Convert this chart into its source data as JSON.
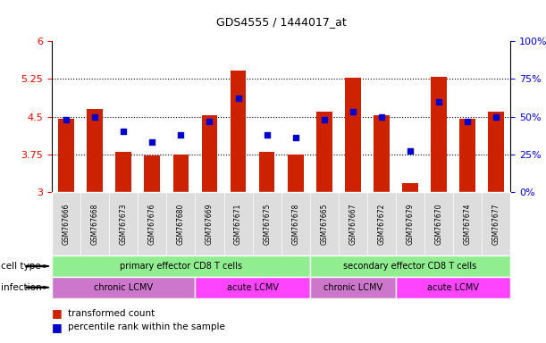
{
  "title": "GDS4555 / 1444017_at",
  "samples": [
    "GSM767666",
    "GSM767668",
    "GSM767673",
    "GSM767676",
    "GSM767680",
    "GSM767669",
    "GSM767671",
    "GSM767675",
    "GSM767678",
    "GSM767665",
    "GSM767667",
    "GSM767672",
    "GSM767679",
    "GSM767670",
    "GSM767674",
    "GSM767677"
  ],
  "red_values": [
    4.45,
    4.65,
    3.8,
    3.72,
    3.75,
    4.52,
    5.42,
    3.8,
    3.75,
    4.6,
    5.27,
    4.52,
    3.18,
    5.3,
    4.45,
    4.6
  ],
  "blue_values": [
    48,
    50,
    40,
    33,
    38,
    47,
    62,
    38,
    36,
    48,
    53,
    50,
    27,
    60,
    47,
    50
  ],
  "ylim_left": [
    3.0,
    6.0
  ],
  "ylim_right": [
    0,
    100
  ],
  "yticks_left": [
    3.0,
    3.75,
    4.5,
    5.25,
    6.0
  ],
  "ytick_labels_left": [
    "3",
    "3.75",
    "4.5",
    "5.25",
    "6"
  ],
  "yticks_right": [
    0,
    25,
    50,
    75,
    100
  ],
  "ytick_labels_right": [
    "0%",
    "25%",
    "50%",
    "75%",
    "100%"
  ],
  "hlines": [
    3.75,
    4.5,
    5.25
  ],
  "bar_color": "#cc2200",
  "dot_color": "#0000cc",
  "bar_width": 0.55,
  "cell_spans": [
    {
      "label": "primary effector CD8 T cells",
      "start": 0,
      "end": 8,
      "color": "#90EE90"
    },
    {
      "label": "secondary effector CD8 T cells",
      "start": 9,
      "end": 15,
      "color": "#90EE90"
    }
  ],
  "inf_spans": [
    {
      "label": "chronic LCMV",
      "start": 0,
      "end": 4,
      "color": "#CC77CC"
    },
    {
      "label": "acute LCMV",
      "start": 5,
      "end": 8,
      "color": "#FF44FF"
    },
    {
      "label": "chronic LCMV",
      "start": 9,
      "end": 11,
      "color": "#CC77CC"
    },
    {
      "label": "acute LCMV",
      "start": 12,
      "end": 15,
      "color": "#FF44FF"
    }
  ],
  "legend_red": "transformed count",
  "legend_blue": "percentile rank within the sample",
  "cell_type_label": "cell type",
  "infection_label": "infection",
  "xticklabel_bg": "#DDDDDD",
  "plot_bg": "#FFFFFF"
}
